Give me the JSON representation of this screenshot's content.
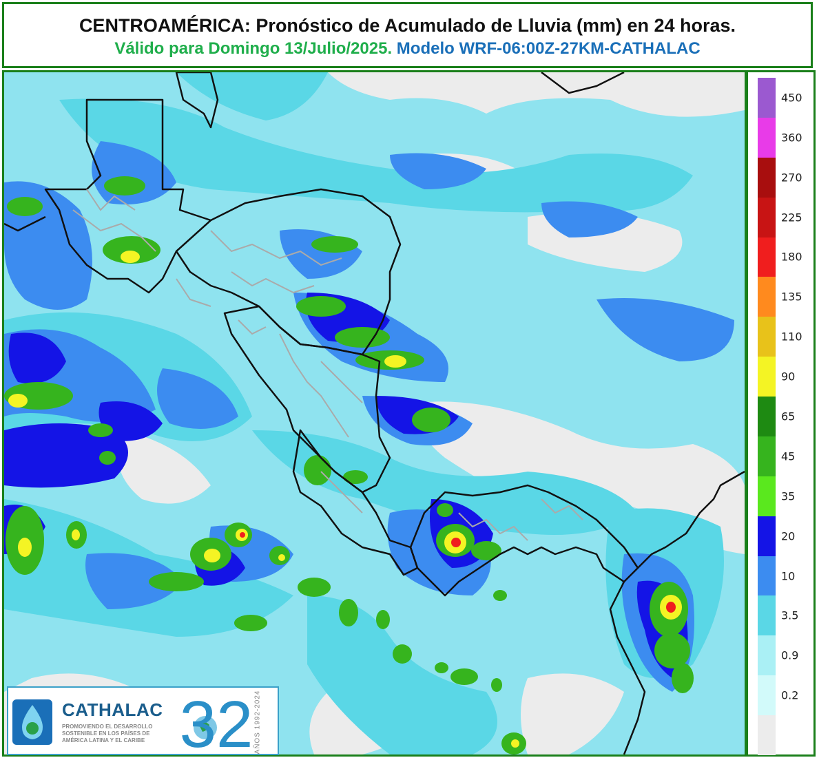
{
  "header": {
    "title": "CENTROAMÉRICA: Pronóstico de Acumulado de Lluvia (mm) en 24 horas.",
    "valid": "Válido para Domingo 13/Julio/2025.",
    "model": "Modelo WRF-06:00Z-27KM-CATHALAC"
  },
  "legend": {
    "ticks": [
      "450",
      "360",
      "270",
      "225",
      "180",
      "135",
      "110",
      "90",
      "65",
      "45",
      "35",
      "20",
      "10",
      "3.5",
      "0.9",
      "0.2"
    ],
    "colors": [
      "#9b59d0",
      "#e83be8",
      "#a80e0e",
      "#c81414",
      "#f01e1e",
      "#ff8a1e",
      "#e8c21a",
      "#f4f424",
      "#1e8a12",
      "#36b41e",
      "#5ae81e",
      "#1414e6",
      "#3c8cf0",
      "#5ad7e6",
      "#aaf0f5",
      "#d2fafa",
      "#ececec"
    ]
  },
  "map": {
    "background_color": "#8fe3ef",
    "land_border_color": "#111111",
    "admin_border_color": "#aaaaaa"
  },
  "logo": {
    "name": "CATHALAC",
    "line1": "PROMOVIENDO EL DESARROLLO",
    "line2": "SOSTENIBLE EN LOS PAÍSES DE",
    "line3": "AMÉRICA LATINA Y EL CARIBE",
    "anniversary": "32",
    "years": "AÑOS 1992-2024"
  }
}
